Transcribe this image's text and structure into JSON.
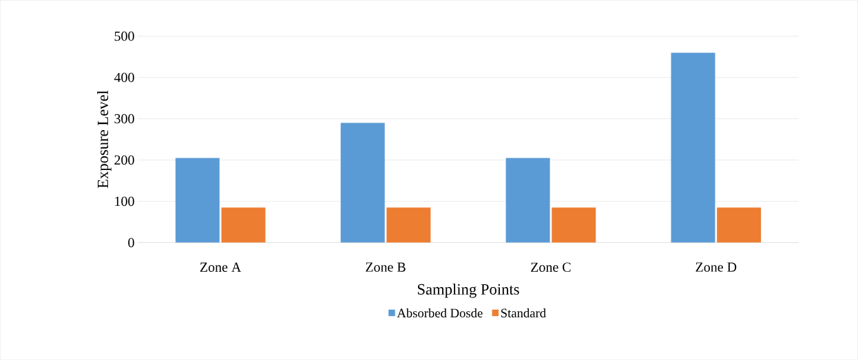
{
  "chart_data": {
    "type": "bar",
    "xlabel": "Sampling Points",
    "ylabel": "Exposure Level",
    "categories": [
      "Zone A",
      "Zone B",
      "Zone C",
      "Zone D"
    ],
    "series": [
      {
        "name": "Absorbed Dosde",
        "color": "#5b9bd5",
        "values": [
          205,
          290,
          205,
          460
        ]
      },
      {
        "name": "Standard",
        "color": "#ed7d31",
        "values": [
          85,
          85,
          85,
          85
        ]
      }
    ],
    "ylim": [
      0,
      500
    ],
    "yticks": [
      0,
      100,
      200,
      300,
      400,
      500
    ],
    "grid": "y",
    "legend": "bottom"
  }
}
